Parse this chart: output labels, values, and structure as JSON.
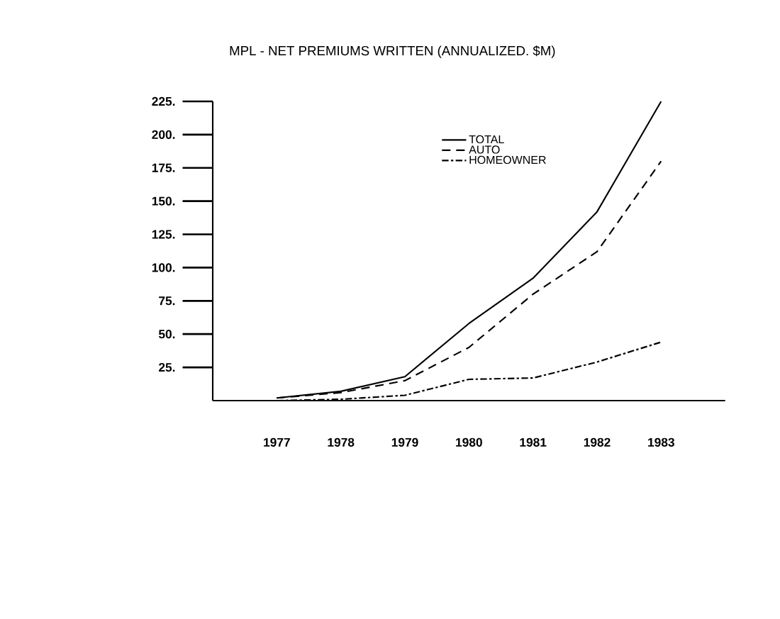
{
  "chart_data": {
    "type": "line",
    "title": "MPL - NET PREMIUMS WRITTEN (ANNUALIZED. $M)",
    "x": [
      1977,
      1978,
      1979,
      1980,
      1981,
      1982,
      1983
    ],
    "series": [
      {
        "name": "TOTAL",
        "color": "#000000",
        "line_style": "solid",
        "values": [
          2,
          7,
          18,
          58,
          92,
          142,
          225
        ]
      },
      {
        "name": "AUTO",
        "color": "#000000",
        "line_style": "dashed",
        "values": [
          2,
          6,
          15,
          40,
          80,
          112,
          180
        ]
      },
      {
        "name": "HOMEOWNER",
        "color": "#000000",
        "line_style": "dashdot",
        "values": [
          0,
          1,
          4,
          16,
          17,
          29,
          44
        ]
      }
    ],
    "xlim": [
      1976,
      1984
    ],
    "ylim": [
      0,
      225
    ],
    "xticks": [
      1977,
      1978,
      1979,
      1980,
      1981,
      1982,
      1983
    ],
    "yticks": [
      {
        "value": 25,
        "label": "25."
      },
      {
        "value": 50,
        "label": "50."
      },
      {
        "value": 75,
        "label": "75."
      },
      {
        "value": 100,
        "label": "100."
      },
      {
        "value": 125,
        "label": "125."
      },
      {
        "value": 150,
        "label": "150."
      },
      {
        "value": 175,
        "label": "175."
      },
      {
        "value": 200,
        "label": "200."
      },
      {
        "value": 225,
        "label": "225."
      }
    ],
    "grid": false,
    "legend": "top",
    "marker": "none"
  }
}
